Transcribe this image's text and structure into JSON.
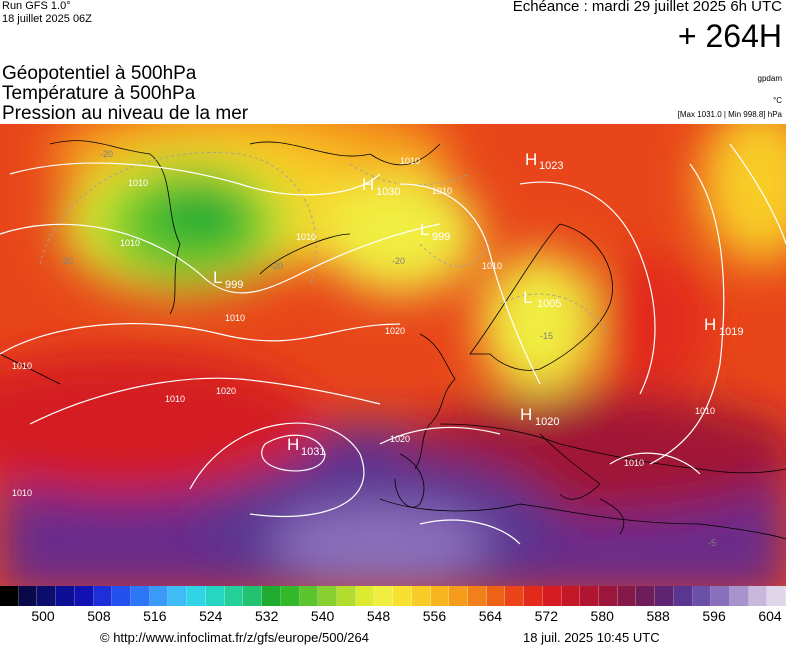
{
  "header": {
    "run_label": "Run GFS 1.0°",
    "run_date": "18 juillet 2025 06Z",
    "valid_time": "Echéance : mardi 29 juillet 2025 6h UTC",
    "lead_time": "+ 264H"
  },
  "products": [
    "Géopotentiel à 500hPa",
    "Température à 500hPa",
    "Pression au niveau de la mer"
  ],
  "units": {
    "geopotential": "gpdam",
    "temperature": "°C",
    "pressure_range": "[Max 1031.0 | Min 998.8] hPa"
  },
  "map": {
    "pressure_centers": [
      {
        "type": "H",
        "value": "1023"
      },
      {
        "type": "H",
        "value": "1030"
      },
      {
        "type": "L",
        "value": "999"
      },
      {
        "type": "L",
        "value": "999"
      },
      {
        "type": "L",
        "value": "1005"
      },
      {
        "type": "H",
        "value": "1019"
      },
      {
        "type": "H",
        "value": "1020"
      },
      {
        "type": "H",
        "value": "1031"
      }
    ],
    "isobar_labels": [
      "1010",
      "1010",
      "1010",
      "1010",
      "1010",
      "1010",
      "1010",
      "1010",
      "1020",
      "1020",
      "1020",
      "1010",
      "1010",
      "1010",
      "1010"
    ],
    "temperature_labels": [
      "-20",
      "-20",
      "-20",
      "-20",
      "-15",
      "-5"
    ]
  },
  "colorbar": {
    "ticks": [
      "500",
      "508",
      "516",
      "524",
      "532",
      "540",
      "548",
      "556",
      "564",
      "572",
      "580",
      "588",
      "596",
      "604"
    ],
    "colors": [
      "#000000",
      "#08084a",
      "#0d0d6e",
      "#0d0d95",
      "#1212b4",
      "#1d2fd8",
      "#2450f0",
      "#2d76f5",
      "#3a9af7",
      "#3fbcf4",
      "#2fd4e6",
      "#26d6c0",
      "#24cf9a",
      "#22c270",
      "#1faa30",
      "#33b82a",
      "#5cc42e",
      "#88d02f",
      "#b4dc2f",
      "#dcea30",
      "#f0ee40",
      "#f8e030",
      "#f8cc26",
      "#f7b620",
      "#f59c1c",
      "#f2801a",
      "#ee6218",
      "#ea4418",
      "#e22a1c",
      "#d41c22",
      "#c41828",
      "#b01632",
      "#9a163c",
      "#841848",
      "#6e1c5a",
      "#5e2472",
      "#5a3690",
      "#6a50a8",
      "#8a70bc",
      "#a894cc",
      "#c8b8dc",
      "#e0d6ea"
    ]
  },
  "footer": {
    "url": "© http://www.infoclimat.fr/z/gfs/europe/500/264",
    "date": "18 juil. 2025 10:45 UTC"
  }
}
